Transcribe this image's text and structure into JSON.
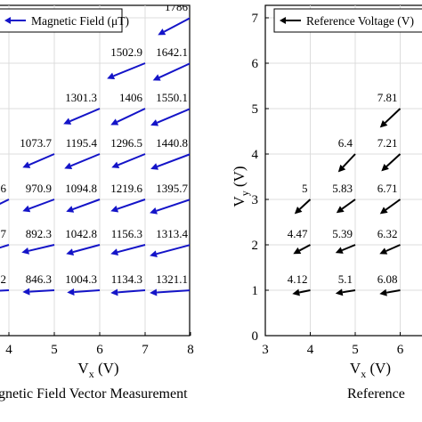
{
  "chart_data": [
    {
      "type": "quiver",
      "caption": "gnetic Field Vector Measurement",
      "xlabel": {
        "main": "V",
        "sub": "x",
        "unit": " (V)"
      },
      "x_ticks": [
        4,
        5,
        6,
        7,
        8
      ],
      "xlim": [
        3.75,
        8
      ],
      "ylim": [
        0,
        7.3
      ],
      "legend": {
        "label": "Magnetic Field (μT)",
        "position": "top-left"
      },
      "arrow_color": "#1414c8",
      "vectors": [
        {
          "x": 8,
          "y": 7,
          "dx": -0.72,
          "dy": -0.38,
          "label": "1786"
        },
        {
          "x": 7,
          "y": 6,
          "dx": -0.84,
          "dy": -0.34,
          "label": "1502.9"
        },
        {
          "x": 8,
          "y": 6,
          "dx": -0.83,
          "dy": -0.38,
          "label": "1642.1"
        },
        {
          "x": 6,
          "y": 5,
          "dx": -0.8,
          "dy": -0.34,
          "label": "1301.3"
        },
        {
          "x": 7,
          "y": 5,
          "dx": -0.76,
          "dy": -0.36,
          "label": "1406"
        },
        {
          "x": 8,
          "y": 5,
          "dx": -0.88,
          "dy": -0.37,
          "label": "1550.1"
        },
        {
          "x": 5,
          "y": 4,
          "dx": -0.7,
          "dy": -0.3,
          "label": "1073.7"
        },
        {
          "x": 6,
          "y": 4,
          "dx": -0.78,
          "dy": -0.32,
          "label": "1195.4"
        },
        {
          "x": 7,
          "y": 4,
          "dx": -0.74,
          "dy": -0.3,
          "label": "1296.5"
        },
        {
          "x": 8,
          "y": 4,
          "dx": -0.88,
          "dy": -0.33,
          "label": "1440.8"
        },
        {
          "x": 4,
          "y": 3,
          "dx": -0.45,
          "dy": -0.22,
          "label": "6"
        },
        {
          "x": 5,
          "y": 3,
          "dx": -0.7,
          "dy": -0.26,
          "label": "970.9"
        },
        {
          "x": 6,
          "y": 3,
          "dx": -0.74,
          "dy": -0.27,
          "label": "1094.8"
        },
        {
          "x": 7,
          "y": 3,
          "dx": -0.76,
          "dy": -0.26,
          "label": "1219.6"
        },
        {
          "x": 8,
          "y": 3,
          "dx": -0.9,
          "dy": -0.3,
          "label": "1395.7"
        },
        {
          "x": 4,
          "y": 2,
          "dx": -0.45,
          "dy": -0.14,
          "label": ".7"
        },
        {
          "x": 5,
          "y": 2,
          "dx": -0.72,
          "dy": -0.17,
          "label": "892.3"
        },
        {
          "x": 6,
          "y": 2,
          "dx": -0.74,
          "dy": -0.2,
          "label": "1042.8"
        },
        {
          "x": 7,
          "y": 2,
          "dx": -0.76,
          "dy": -0.2,
          "label": "1156.3"
        },
        {
          "x": 8,
          "y": 2,
          "dx": -0.9,
          "dy": -0.24,
          "label": "1313.4"
        },
        {
          "x": 4,
          "y": 1,
          "dx": -0.45,
          "dy": -0.02,
          "label": "2"
        },
        {
          "x": 5,
          "y": 1,
          "dx": -0.7,
          "dy": -0.04,
          "label": "846.3"
        },
        {
          "x": 6,
          "y": 1,
          "dx": -0.72,
          "dy": -0.05,
          "label": "1004.3"
        },
        {
          "x": 7,
          "y": 1,
          "dx": -0.76,
          "dy": -0.06,
          "label": "1134.3"
        },
        {
          "x": 8,
          "y": 1,
          "dx": -0.9,
          "dy": -0.06,
          "label": "1321.1"
        }
      ]
    },
    {
      "type": "quiver",
      "caption": "Reference",
      "xlabel": {
        "main": "V",
        "sub": "x",
        "unit": " (V)"
      },
      "ylabel": {
        "main": "V",
        "sub": "y",
        "unit": " (V)"
      },
      "x_ticks": [
        3,
        4,
        5,
        6
      ],
      "y_ticks": [
        0,
        1,
        2,
        3,
        4,
        5,
        6,
        7
      ],
      "xlim": [
        3,
        6.55
      ],
      "ylim": [
        0,
        7.3
      ],
      "legend": {
        "label": "Reference Voltage (V)",
        "position": "top-left"
      },
      "arrow_color": "#000000",
      "vectors": [
        {
          "x": 5,
          "y": 4,
          "dx": -0.38,
          "dy": -0.4,
          "label": "6.4"
        },
        {
          "x": 6,
          "y": 5,
          "dx": -0.45,
          "dy": -0.42,
          "label": "7.81"
        },
        {
          "x": 6,
          "y": 4,
          "dx": -0.42,
          "dy": -0.38,
          "label": "7.21"
        },
        {
          "x": 4,
          "y": 3,
          "dx": -0.35,
          "dy": -0.32,
          "label": "5"
        },
        {
          "x": 5,
          "y": 3,
          "dx": -0.42,
          "dy": -0.3,
          "label": "5.83"
        },
        {
          "x": 6,
          "y": 3,
          "dx": -0.45,
          "dy": -0.32,
          "label": "6.71"
        },
        {
          "x": 4,
          "y": 2,
          "dx": -0.38,
          "dy": -0.2,
          "label": "4.47"
        },
        {
          "x": 5,
          "y": 2,
          "dx": -0.44,
          "dy": -0.18,
          "label": "5.39"
        },
        {
          "x": 6,
          "y": 2,
          "dx": -0.46,
          "dy": -0.2,
          "label": "6.32"
        },
        {
          "x": 4,
          "y": 1,
          "dx": -0.4,
          "dy": -0.08,
          "label": "4.12"
        },
        {
          "x": 5,
          "y": 1,
          "dx": -0.44,
          "dy": -0.07,
          "label": "5.1"
        },
        {
          "x": 6,
          "y": 1,
          "dx": -0.46,
          "dy": -0.08,
          "label": "6.08"
        }
      ]
    }
  ]
}
